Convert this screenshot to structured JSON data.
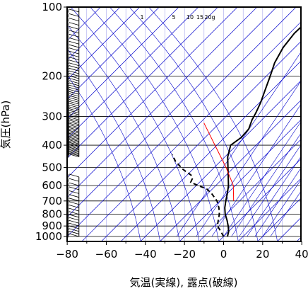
{
  "chart_data": {
    "type": "line",
    "subtype": "skew-T log-P diagram",
    "xlabel": "気温(実線), 露点(破線)",
    "ylabel": "気圧(hPa)",
    "x_ticks": [
      -80,
      -60,
      -40,
      -20,
      0,
      20,
      40
    ],
    "y_ticks": [
      100,
      200,
      300,
      400,
      500,
      600,
      700,
      800,
      900,
      1000
    ],
    "pressure_range_hPa": [
      1050,
      100
    ],
    "temperature_range_at_bottom": [
      -80,
      40
    ],
    "y_scale": "log",
    "mixing_ratio_labels": [
      "1",
      "5",
      "10",
      "15",
      "20g"
    ],
    "colors": {
      "temperature": "#000000",
      "dewpoint": "#000000",
      "isotherm_grid": "#0000cc",
      "isobar_grid": "#000000",
      "parcel_line": "#ff0000",
      "wind_barbs": "#000000"
    },
    "series": [
      {
        "style": "solid",
        "variable": "temperature",
        "points": [
          {
            "p": 1000,
            "t": 2.0
          },
          {
            "p": 950,
            "t": 0.0
          },
          {
            "p": 900,
            "t": -3.0
          },
          {
            "p": 850,
            "t": -6.5
          },
          {
            "p": 800,
            "t": -10.5
          },
          {
            "p": 750,
            "t": -14.0
          },
          {
            "p": 700,
            "t": -17.0
          },
          {
            "p": 650,
            "t": -20.0
          },
          {
            "p": 600,
            "t": -23.5
          },
          {
            "p": 550,
            "t": -28.0
          },
          {
            "p": 500,
            "t": -33.0
          },
          {
            "p": 450,
            "t": -38.5
          },
          {
            "p": 400,
            "t": -43.0
          },
          {
            "p": 370,
            "t": -41.5
          },
          {
            "p": 340,
            "t": -42.0
          },
          {
            "p": 310,
            "t": -45.0
          },
          {
            "p": 290,
            "t": -46.5
          },
          {
            "p": 260,
            "t": -49.5
          },
          {
            "p": 230,
            "t": -53.5
          },
          {
            "p": 200,
            "t": -58.0
          },
          {
            "p": 175,
            "t": -62.5
          },
          {
            "p": 150,
            "t": -66.0
          },
          {
            "p": 130,
            "t": -67.5
          },
          {
            "p": 115,
            "t": -67.0
          },
          {
            "p": 105,
            "t": -64.5
          },
          {
            "p": 100,
            "t": -62.0
          }
        ]
      },
      {
        "style": "dashed",
        "variable": "dewpoint",
        "points": [
          {
            "p": 1000,
            "t": 0.0
          },
          {
            "p": 950,
            "t": -4.0
          },
          {
            "p": 900,
            "t": -8.5
          },
          {
            "p": 850,
            "t": -11.0
          },
          {
            "p": 800,
            "t": -13.5
          },
          {
            "p": 750,
            "t": -17.0
          },
          {
            "p": 700,
            "t": -21.5
          },
          {
            "p": 650,
            "t": -28.0
          },
          {
            "p": 620,
            "t": -33.0
          },
          {
            "p": 600,
            "t": -39.0
          },
          {
            "p": 580,
            "t": -44.5
          },
          {
            "p": 560,
            "t": -45.5
          },
          {
            "p": 540,
            "t": -48.0
          },
          {
            "p": 510,
            "t": -55.0
          },
          {
            "p": 470,
            "t": -63.0
          },
          {
            "p": 440,
            "t": -68.0
          }
        ]
      },
      {
        "style": "solid",
        "variable": "parcel",
        "points": [
          {
            "p": 700,
            "t": -13.0
          },
          {
            "p": 600,
            "t": -21.0
          },
          {
            "p": 500,
            "t": -34.0
          },
          {
            "p": 400,
            "t": -51.0
          },
          {
            "p": 320,
            "t": -68.0
          }
        ]
      }
    ],
    "wind_barbs": {
      "column_t_at_bottom": -74,
      "lower_levels_hPa": [
        1000,
        975,
        950,
        925,
        900,
        875,
        850,
        825,
        800,
        775,
        750,
        725,
        700,
        675,
        650,
        625,
        600,
        575,
        550
      ],
      "upper_level_range_hPa": [
        450,
        100
      ],
      "upper_level_spacing_hPa": 5
    }
  }
}
